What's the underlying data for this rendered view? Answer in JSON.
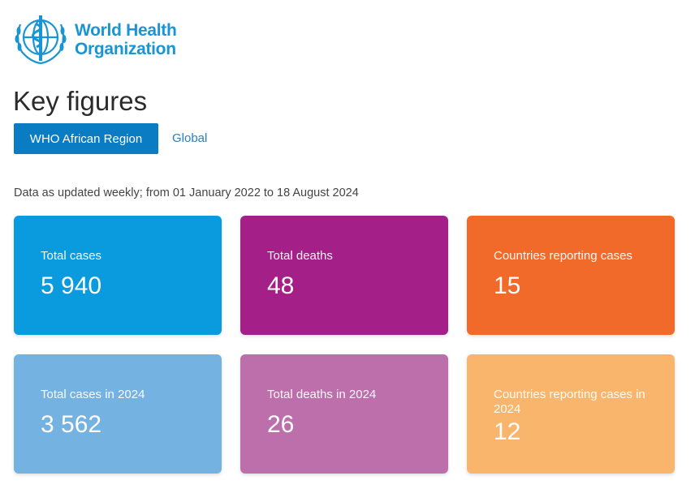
{
  "logo": {
    "text_line1": "World Health",
    "text_line2": "Organization",
    "icon": "who-emblem-icon"
  },
  "page_title": "Key figures",
  "tabs": [
    {
      "label": "WHO African Region",
      "active": true
    },
    {
      "label": "Global",
      "active": false
    }
  ],
  "subtitle": "Data as updated weekly; from 01 January 2022 to 18 August 2024",
  "cards": [
    {
      "label": "Total cases",
      "value": "5 940",
      "color": "#0a9ade"
    },
    {
      "label": "Total deaths",
      "value": "48",
      "color": "#a51f88"
    },
    {
      "label": "Countries reporting cases",
      "value": "15",
      "color": "#f26a2a"
    },
    {
      "label": "Total cases in 2024",
      "value": "3 562",
      "color": "#74b2e2"
    },
    {
      "label": "Total deaths in 2024",
      "value": "26",
      "color": "#bd6fab"
    },
    {
      "label": "Countries reporting cases in 2024",
      "value": "12",
      "color": "#f9b56c"
    }
  ],
  "colors": {
    "brand": "#1a95d4",
    "tab_active": "#0a7cc4",
    "link": "#2a7fba"
  }
}
